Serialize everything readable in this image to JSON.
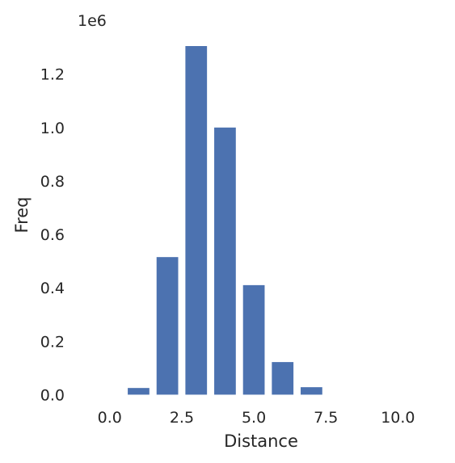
{
  "chart_data": {
    "type": "bar",
    "xlabel": "Distance",
    "ylabel": "Freq",
    "y_multiplier_label": "1e6",
    "xlim": [
      -1.2,
      11.7
    ],
    "ylim": [
      -0.035,
      1.305
    ],
    "x_ticks": [
      0,
      2.5,
      5,
      7.5,
      10
    ],
    "x_tick_labels": [
      "0.0",
      "2.5",
      "5.0",
      "7.5",
      "10.0"
    ],
    "y_ticks": [
      0,
      0.2,
      0.4,
      0.6,
      0.8,
      1.0,
      1.2
    ],
    "y_tick_labels": [
      "0.0",
      "0.2",
      "0.4",
      "0.6",
      "0.8",
      "1.0",
      "1.2"
    ],
    "grid": false,
    "bar_color": "#4c72b0",
    "x": [
      0,
      1,
      2,
      3,
      4,
      5,
      6,
      7,
      8,
      9,
      10
    ],
    "values": [
      0.0,
      0.025,
      0.515,
      1.305,
      1.0,
      0.41,
      0.122,
      0.028,
      0.0,
      0.0,
      0.0
    ],
    "values_unit": "x 1e6"
  }
}
